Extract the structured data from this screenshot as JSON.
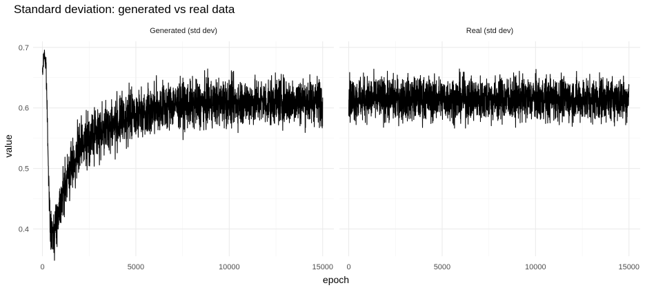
{
  "chart_data": {
    "type": "line",
    "title": "Standard deviation: generated vs real data",
    "xlabel": "epoch",
    "ylabel": "value",
    "xlim": [
      -500,
      15600
    ],
    "ylim": [
      0.355,
      0.71
    ],
    "x_ticks": [
      0,
      5000,
      10000,
      15000
    ],
    "x_tick_labels": [
      "0",
      "5000",
      "10000",
      "15000"
    ],
    "y_ticks": [
      0.4,
      0.5,
      0.6,
      0.7
    ],
    "y_tick_labels": [
      "0.4",
      "0.5",
      "0.6",
      "0.7"
    ],
    "grid": true,
    "legend": "none",
    "panels": [
      {
        "strip_label": "Generated (std dev)",
        "series": [
          {
            "color": "#000000",
            "x": [
              0,
              100,
              200,
              300,
              400,
              500,
              600,
              800,
              1000,
              1500,
              2000,
              2500,
              3000,
              4000,
              5000,
              6000,
              7000,
              8000,
              9000,
              10000,
              11000,
              12000,
              13000,
              14000,
              15000
            ],
            "y": [
              0.655,
              0.695,
              0.66,
              0.53,
              0.41,
              0.385,
              0.395,
              0.42,
              0.45,
              0.5,
              0.53,
              0.55,
              0.56,
              0.575,
              0.59,
              0.6,
              0.605,
              0.605,
              0.608,
              0.61,
              0.61,
              0.61,
              0.612,
              0.612,
              0.612
            ],
            "noise_amplitude": [
              0.005,
              0.008,
              0.01,
              0.012,
              0.014,
              0.016,
              0.017,
              0.018,
              0.019,
              0.02,
              0.021,
              0.021,
              0.021,
              0.021,
              0.02,
              0.02,
              0.019,
              0.019,
              0.019,
              0.019,
              0.019,
              0.019,
              0.019,
              0.019,
              0.019
            ]
          }
        ]
      },
      {
        "strip_label": "Real (std dev)",
        "series": [
          {
            "color": "#000000",
            "x": [
              0,
              15000
            ],
            "y": [
              0.615,
              0.615
            ],
            "noise_amplitude": [
              0.018,
              0.018
            ]
          }
        ]
      }
    ]
  }
}
